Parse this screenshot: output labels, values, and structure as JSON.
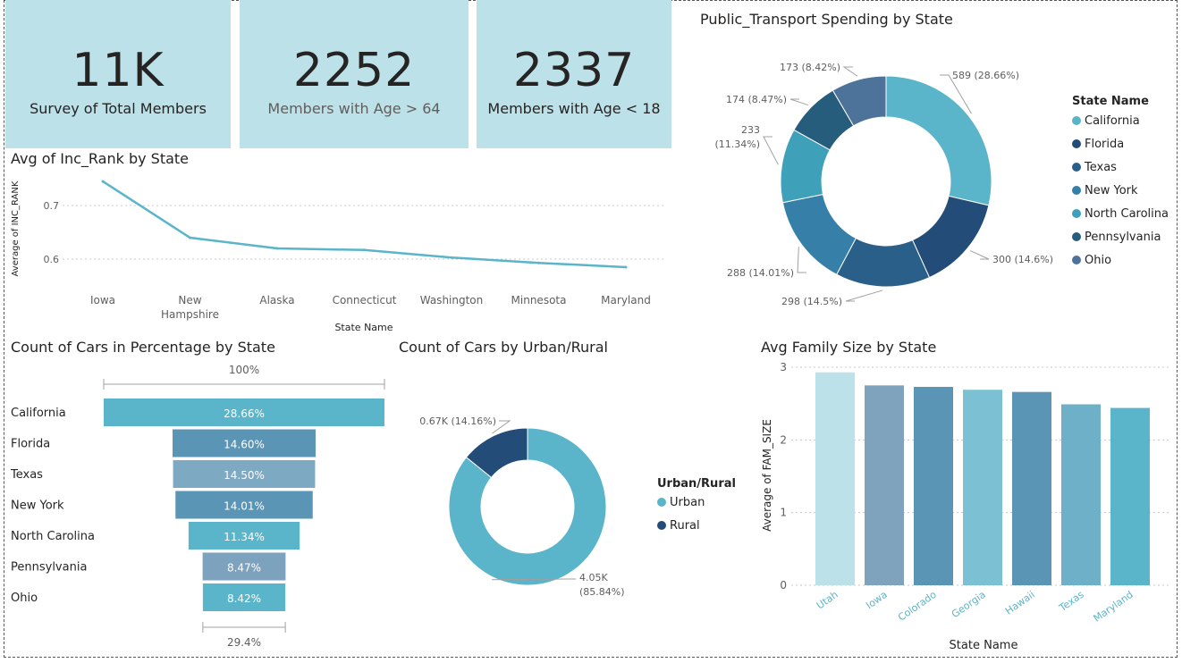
{
  "kpis": [
    {
      "value": "11K",
      "label": "Survey of Total Members"
    },
    {
      "value": "2252",
      "label": "Members with Age > 64"
    },
    {
      "value": "2337",
      "label": "Members with Age < 18"
    }
  ],
  "titles": {
    "line": "Avg of Inc_Rank by State",
    "pie1": "Public_Transport Spending by State",
    "funnel": "Count of Cars in Percentage by State",
    "donut2": "Count of Cars by Urban/Rural",
    "bar": "Avg Family Size by State"
  },
  "chart_data": [
    {
      "type": "line",
      "title": "Avg of Inc_Rank by State",
      "xlabel": "State Name",
      "ylabel": "Average of INC_RANK",
      "categories": [
        "Iowa",
        "New Hampshire",
        "Alaska",
        "Connecticut",
        "Washington",
        "Minnesota",
        "Maryland"
      ],
      "category_lines": [
        [
          "Iowa"
        ],
        [
          "New",
          "Hampshire"
        ],
        [
          "Alaska"
        ],
        [
          "Connecticut"
        ],
        [
          "Washington"
        ],
        [
          "Minnesota"
        ],
        [
          "Maryland"
        ]
      ],
      "values": [
        0.745,
        0.64,
        0.62,
        0.617,
        0.603,
        0.593,
        0.585
      ],
      "yticks": [
        0.6,
        0.7
      ],
      "ylim": [
        0.55,
        0.75
      ],
      "color": "#5ab4ca"
    },
    {
      "type": "pie",
      "title": "Public_Transport Spending by State",
      "legend_title": "State Name",
      "labels": [
        "California",
        "Florida",
        "Texas",
        "New York",
        "North Carolina",
        "Pennsylvania",
        "Ohio"
      ],
      "values": [
        589,
        300,
        298,
        288,
        233,
        174,
        173
      ],
      "data_labels": [
        "589 (28.66%)",
        "300 (14.6%)",
        "298 (14.5%)",
        "288 (14.01%)",
        "233\n(11.34%)",
        "174 (8.47%)",
        "173 (8.42%)"
      ],
      "colors": [
        "#5ab4ca",
        "#244c78",
        "#2a5f8a",
        "#357fa8",
        "#3fa0b9",
        "#275d7c",
        "#4d739a"
      ]
    },
    {
      "type": "funnel",
      "title": "Count of Cars in Percentage by State",
      "categories": [
        "California",
        "Florida",
        "Texas",
        "New York",
        "North Carolina",
        "Pennsylvania",
        "Ohio"
      ],
      "values": [
        28.66,
        14.6,
        14.5,
        14.01,
        11.34,
        8.47,
        8.42
      ],
      "data_labels": [
        "28.66%",
        "14.60%",
        "14.50%",
        "14.01%",
        "11.34%",
        "8.47%",
        "8.42%"
      ],
      "top_label": "100%",
      "bottom_label": "29.4%",
      "colors": [
        "#5ab4ca",
        "#5b95b5",
        "#7da9c3",
        "#5b95b5",
        "#5ab4ca",
        "#7da2be",
        "#5ab4ca"
      ]
    },
    {
      "type": "pie",
      "title": "Count of Cars by Urban/Rural",
      "legend_title": "Urban/Rural",
      "labels": [
        "Urban",
        "Rural"
      ],
      "values": [
        4050,
        670
      ],
      "data_labels": [
        "4.05K\n(85.84%)",
        "0.67K (14.16%)"
      ],
      "colors": [
        "#5ab4ca",
        "#244c78"
      ]
    },
    {
      "type": "bar",
      "title": "Avg Family Size by State",
      "xlabel": "State Name",
      "ylabel": "Average of FAM_SIZE",
      "categories": [
        "Utah",
        "Iowa",
        "Colorado",
        "Georgia",
        "Hawaii",
        "Texas",
        "Maryland"
      ],
      "values": [
        2.93,
        2.75,
        2.73,
        2.69,
        2.66,
        2.49,
        2.44
      ],
      "yticks": [
        0,
        1,
        2,
        3
      ],
      "ylim": [
        0,
        3
      ],
      "colors": [
        "#bde1e9",
        "#7fa2bd",
        "#5b95b5",
        "#7cc1d3",
        "#5b95b5",
        "#6fb0c9",
        "#5ab4ca"
      ]
    }
  ]
}
